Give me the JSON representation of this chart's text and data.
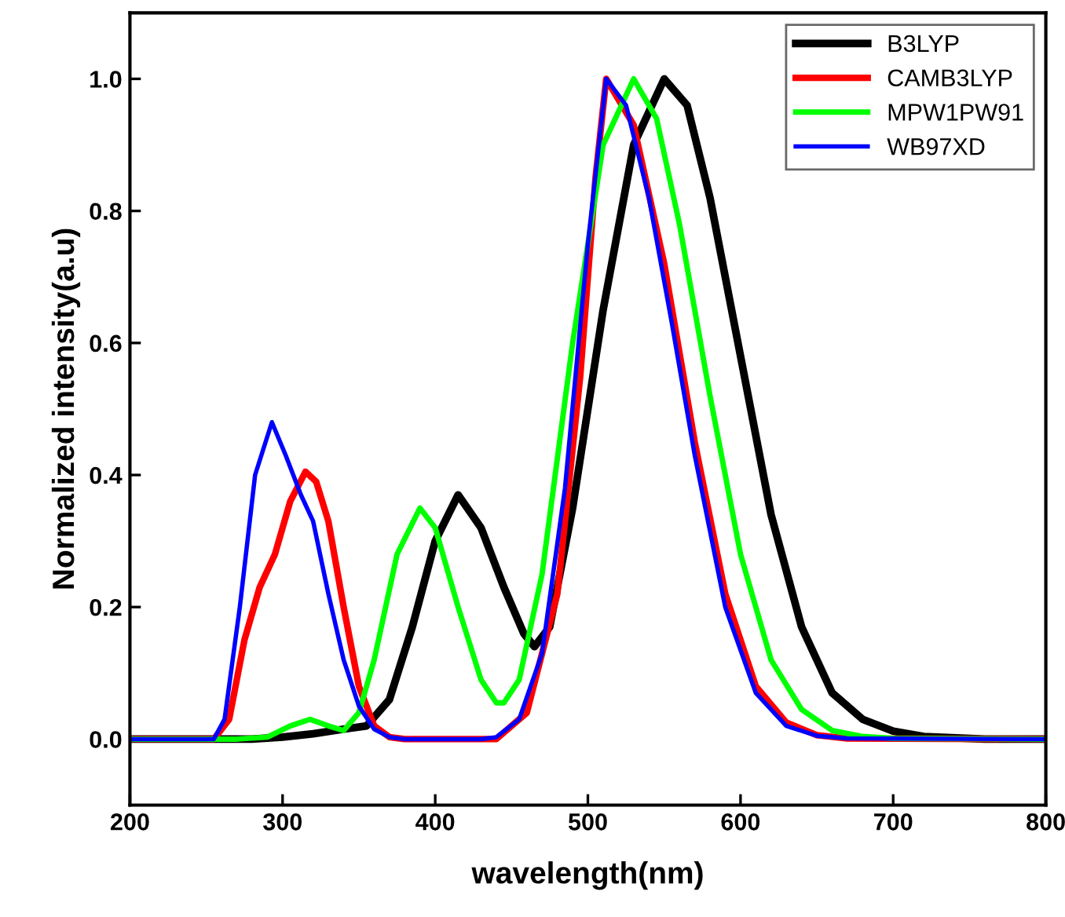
{
  "chart_data": {
    "type": "line",
    "xlabel": "wavelength(nm)",
    "ylabel": "Normalized intensity(a.u)",
    "xlim": [
      200,
      800
    ],
    "ylim": [
      -0.1,
      1.1
    ],
    "xticks": [
      200,
      300,
      400,
      500,
      600,
      700,
      800
    ],
    "yticks": [
      {
        "value": 0.0,
        "label": "0.0"
      },
      {
        "value": 0.2,
        "label": "0.2"
      },
      {
        "value": 0.4,
        "label": "0.4"
      },
      {
        "value": 0.6,
        "label": "0.6"
      },
      {
        "value": 0.8,
        "label": "0.8"
      },
      {
        "value": 1.0,
        "label": "1.0"
      }
    ],
    "grid": false,
    "legend": "top right",
    "marker": "none",
    "line_style": "solid",
    "series": [
      {
        "name": "B3LYP",
        "color": "#000000",
        "x": [
          200,
          280,
          300,
          320,
          340,
          355,
          370,
          385,
          400,
          415,
          430,
          445,
          458,
          465,
          475,
          490,
          510,
          530,
          550,
          565,
          580,
          600,
          620,
          640,
          660,
          680,
          700,
          720,
          760,
          800
        ],
        "values": [
          0,
          0,
          0.003,
          0.008,
          0.015,
          0.02,
          0.06,
          0.17,
          0.3,
          0.37,
          0.32,
          0.23,
          0.16,
          0.14,
          0.17,
          0.35,
          0.65,
          0.9,
          1.0,
          0.96,
          0.82,
          0.58,
          0.34,
          0.17,
          0.07,
          0.03,
          0.012,
          0.004,
          0,
          0
        ]
      },
      {
        "name": "CAMB3LYP",
        "color": "#ff0000",
        "x": [
          200,
          255,
          265,
          275,
          285,
          295,
          305,
          315,
          322,
          330,
          340,
          350,
          360,
          370,
          380,
          440,
          460,
          480,
          495,
          505,
          512,
          530,
          550,
          570,
          590,
          610,
          630,
          650,
          670,
          800
        ],
        "values": [
          0,
          0,
          0.03,
          0.15,
          0.23,
          0.28,
          0.36,
          0.405,
          0.39,
          0.33,
          0.2,
          0.08,
          0.02,
          0.003,
          0,
          0,
          0.04,
          0.22,
          0.55,
          0.85,
          1.0,
          0.93,
          0.72,
          0.45,
          0.22,
          0.08,
          0.025,
          0.006,
          0.001,
          0
        ]
      },
      {
        "name": "MPW1PW91",
        "color": "#00ff00",
        "x": [
          200,
          270,
          290,
          305,
          318,
          330,
          340,
          350,
          360,
          375,
          390,
          400,
          415,
          430,
          440,
          445,
          455,
          470,
          490,
          510,
          530,
          545,
          560,
          580,
          600,
          620,
          640,
          660,
          680,
          700,
          800
        ],
        "values": [
          0,
          0,
          0.003,
          0.02,
          0.03,
          0.02,
          0.013,
          0.04,
          0.12,
          0.28,
          0.35,
          0.32,
          0.2,
          0.09,
          0.055,
          0.055,
          0.09,
          0.25,
          0.6,
          0.9,
          1.0,
          0.94,
          0.78,
          0.52,
          0.28,
          0.12,
          0.045,
          0.013,
          0.004,
          0.001,
          0
        ]
      },
      {
        "name": "WB97XD",
        "color": "#0000ff",
        "x": [
          200,
          255,
          262,
          272,
          282,
          293,
          302,
          312,
          320,
          330,
          340,
          350,
          360,
          370,
          380,
          430,
          440,
          455,
          470,
          485,
          500,
          512,
          525,
          540,
          555,
          570,
          590,
          610,
          630,
          650,
          670,
          800
        ],
        "values": [
          0,
          0,
          0.03,
          0.2,
          0.4,
          0.48,
          0.43,
          0.37,
          0.33,
          0.22,
          0.12,
          0.05,
          0.015,
          0.003,
          0,
          0,
          0.003,
          0.03,
          0.13,
          0.38,
          0.75,
          1.0,
          0.96,
          0.82,
          0.63,
          0.43,
          0.2,
          0.07,
          0.02,
          0.005,
          0.001,
          0
        ]
      }
    ]
  }
}
